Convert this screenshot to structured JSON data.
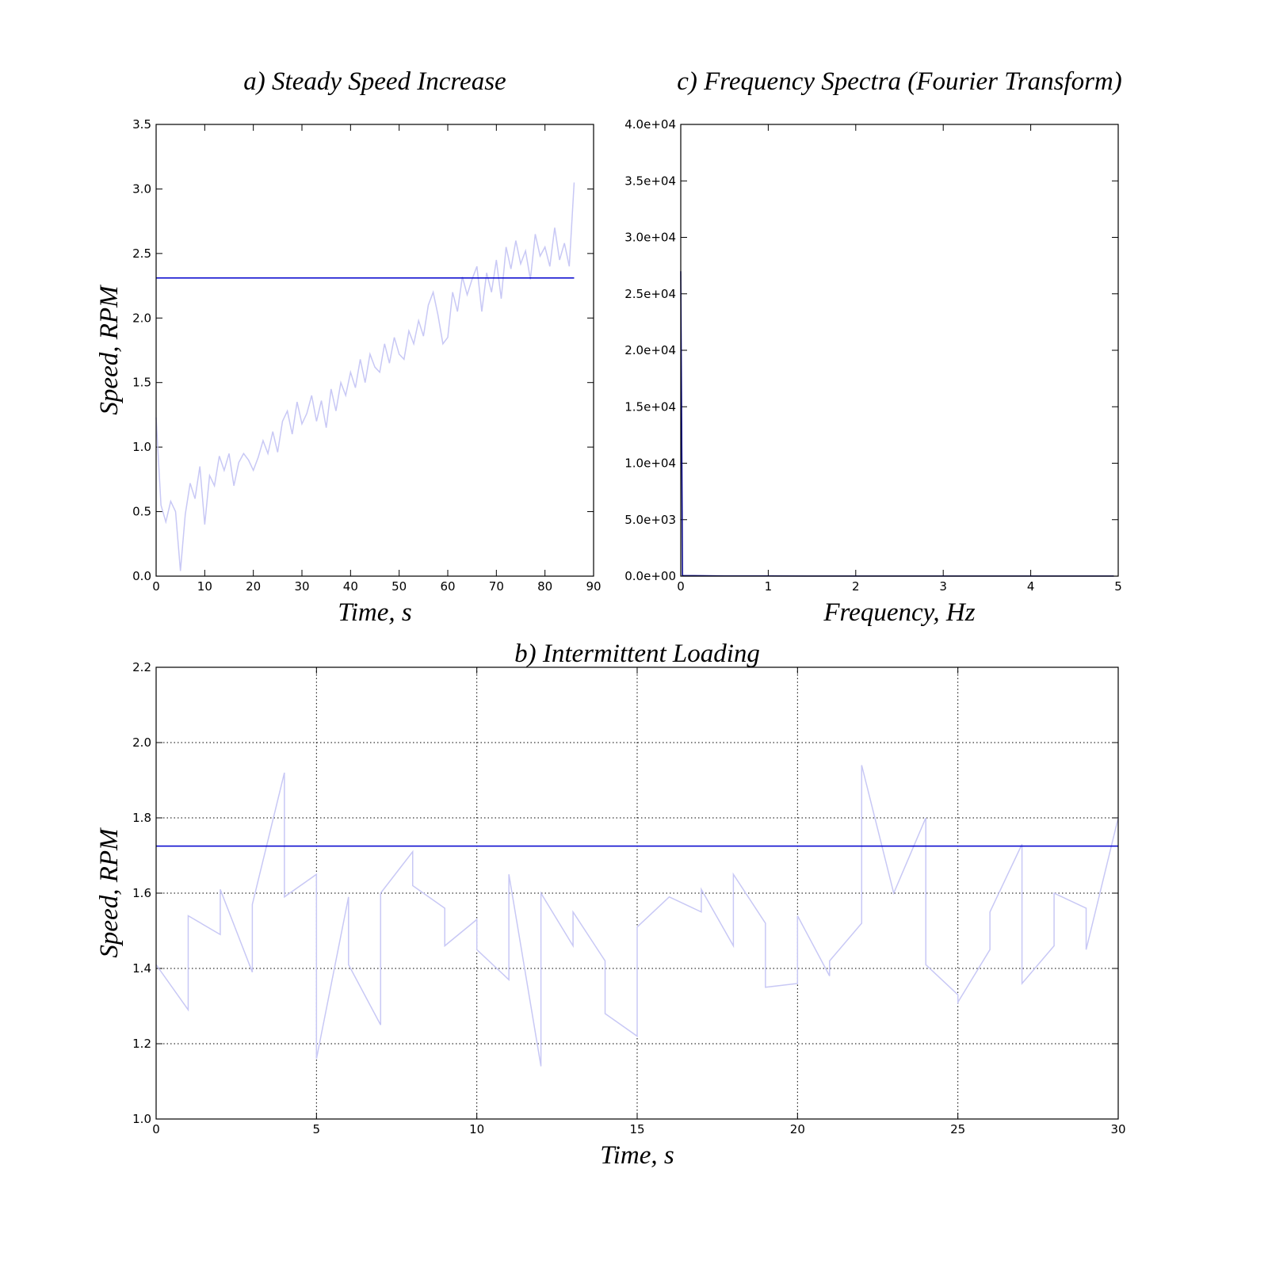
{
  "chart_data": [
    {
      "type": "line",
      "title": "a) Steady Speed Increase",
      "xlabel": "Time, s",
      "ylabel": "Speed, RPM",
      "xlim": [
        0,
        90
      ],
      "xticks": [
        0,
        10,
        20,
        30,
        40,
        50,
        60,
        70,
        80,
        90
      ],
      "ylim": [
        0,
        3.5
      ],
      "yticks": [
        {
          "value": 0,
          "label": "0.0"
        },
        0.5,
        {
          "value": 1,
          "label": "1.0"
        },
        1.5,
        {
          "value": 2,
          "label": "2.0"
        },
        2.5,
        {
          "value": 3,
          "label": "3.0"
        },
        3.5
      ],
      "grid": false,
      "series": [
        {
          "color": "#c8c8f5",
          "x": [
            0,
            1,
            2,
            3,
            4,
            5,
            6,
            7,
            8,
            9,
            10,
            11,
            12,
            13,
            14,
            15,
            16,
            17,
            18,
            19,
            20,
            21,
            22,
            23,
            24,
            25,
            26,
            27,
            28,
            29,
            30,
            31,
            32,
            33,
            34,
            35,
            36,
            37,
            38,
            39,
            40,
            41,
            42,
            43,
            44,
            45,
            46,
            47,
            48,
            49,
            50,
            51,
            52,
            53,
            54,
            55,
            56,
            57,
            58,
            59,
            60,
            61,
            62,
            63,
            64,
            65,
            66,
            67,
            68,
            69,
            70,
            71,
            72,
            73,
            74,
            75,
            76,
            77,
            78,
            79,
            80,
            81,
            82,
            83,
            84,
            85,
            86
          ],
          "values": [
            1.23,
            0.55,
            0.42,
            0.58,
            0.5,
            0.04,
            0.48,
            0.72,
            0.6,
            0.85,
            0.4,
            0.78,
            0.7,
            0.93,
            0.82,
            0.95,
            0.7,
            0.88,
            0.95,
            0.9,
            0.82,
            0.92,
            1.05,
            0.95,
            1.12,
            0.96,
            1.2,
            1.28,
            1.1,
            1.35,
            1.18,
            1.26,
            1.4,
            1.2,
            1.36,
            1.15,
            1.45,
            1.28,
            1.5,
            1.4,
            1.58,
            1.46,
            1.68,
            1.5,
            1.72,
            1.62,
            1.58,
            1.8,
            1.65,
            1.85,
            1.72,
            1.68,
            1.9,
            1.8,
            1.98,
            1.86,
            2.1,
            2.2,
            2.02,
            1.8,
            1.85,
            2.2,
            2.05,
            2.32,
            2.18,
            2.3,
            2.4,
            2.05,
            2.35,
            2.2,
            2.45,
            2.15,
            2.55,
            2.38,
            2.6,
            2.42,
            2.52,
            2.3,
            2.65,
            2.48,
            2.55,
            2.4,
            2.7,
            2.45,
            2.58,
            2.4,
            3.05
          ]
        },
        {
          "color": "#0000cc",
          "x": [
            0,
            86
          ],
          "values": [
            2.31,
            2.31
          ]
        }
      ]
    },
    {
      "type": "line",
      "title": "c) Frequency Spectra (Fourier Transform)",
      "xlabel": "Frequency, Hz",
      "xlim": [
        0,
        5
      ],
      "xticks": [
        0,
        1,
        2,
        3,
        4,
        5
      ],
      "ylim": [
        0,
        40000
      ],
      "yticks": [
        {
          "value": 0,
          "label": "0.0e+00"
        },
        {
          "value": 5000,
          "label": "5.0e+03"
        },
        {
          "value": 10000,
          "label": "1.0e+04"
        },
        {
          "value": 15000,
          "label": "1.5e+04"
        },
        {
          "value": 20000,
          "label": "2.0e+04"
        },
        {
          "value": 25000,
          "label": "2.5e+04"
        },
        {
          "value": 30000,
          "label": "3.0e+04"
        },
        {
          "value": 35000,
          "label": "3.5e+04"
        },
        {
          "value": 40000,
          "label": "4.0e+04"
        }
      ],
      "grid": false,
      "series": [
        {
          "color": "#00008b",
          "x": [
            0,
            0.02,
            0.5,
            1,
            2,
            3,
            4,
            4.95
          ],
          "values": [
            27000,
            50,
            20,
            15,
            10,
            8,
            5,
            5
          ]
        }
      ]
    },
    {
      "type": "line",
      "title": "b) Intermittent Loading",
      "xlabel": "Time, s",
      "ylabel": "Speed, RPM",
      "xlim": [
        0,
        30
      ],
      "xticks": [
        0,
        5,
        10,
        15,
        20,
        25,
        30
      ],
      "ylim": [
        1,
        2.2
      ],
      "yticks": [
        {
          "value": 1,
          "label": "1.0"
        },
        1.2,
        1.4,
        1.6,
        1.8,
        {
          "value": 2,
          "label": "2.0"
        },
        2.2
      ],
      "grid": true,
      "series": [
        {
          "color": "#c8c8f5",
          "x": [
            0,
            1,
            1,
            2,
            2,
            3,
            3,
            4,
            4,
            5,
            5,
            6,
            6,
            7,
            7,
            8,
            8,
            9,
            9,
            10,
            10,
            11,
            11,
            12,
            12,
            13,
            13,
            14,
            14,
            15,
            15,
            16,
            16,
            17,
            17,
            18,
            18,
            19,
            19,
            20,
            20,
            21,
            21,
            22,
            22,
            23,
            23,
            24,
            24,
            25,
            25,
            26,
            26,
            27,
            27,
            28,
            28,
            29,
            29,
            30
          ],
          "values": [
            1.41,
            1.29,
            1.54,
            1.49,
            1.61,
            1.39,
            1.57,
            1.92,
            1.59,
            1.65,
            1.16,
            1.59,
            1.41,
            1.25,
            1.6,
            1.71,
            1.62,
            1.56,
            1.46,
            1.53,
            1.45,
            1.37,
            1.65,
            1.14,
            1.6,
            1.46,
            1.55,
            1.42,
            1.28,
            1.22,
            1.51,
            1.59,
            1.59,
            1.55,
            1.61,
            1.46,
            1.65,
            1.52,
            1.35,
            1.36,
            1.54,
            1.38,
            1.42,
            1.52,
            1.94,
            1.6,
            1.6,
            1.8,
            1.41,
            1.33,
            1.31,
            1.45,
            1.55,
            1.73,
            1.36,
            1.46,
            1.6,
            1.56,
            1.45,
            1.8
          ]
        },
        {
          "color": "#0000cc",
          "x": [
            0,
            30
          ],
          "values": [
            1.725,
            1.725
          ]
        }
      ]
    }
  ]
}
